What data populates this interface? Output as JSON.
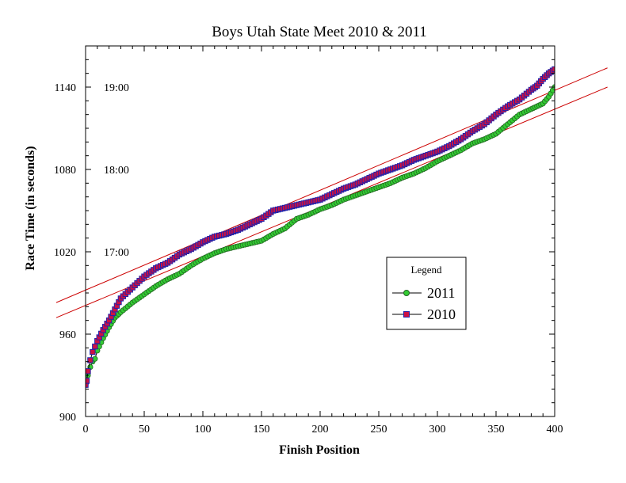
{
  "chart_data": {
    "type": "scatter",
    "title": "Boys Utah State Meet 2010 & 2011",
    "xlabel": "Finish Position",
    "ylabel": "Race Time  (in seconds)",
    "xlim": [
      0,
      400
    ],
    "ylim": [
      900,
      1170
    ],
    "xticks": [
      0,
      50,
      100,
      150,
      200,
      250,
      300,
      350,
      400
    ],
    "yticks": [
      900,
      960,
      1020,
      1080,
      1140
    ],
    "grid": false,
    "legend_position": "right-center",
    "legend": {
      "title": "Legend",
      "entries": [
        "2011",
        "2010"
      ]
    },
    "annotations": [
      {
        "text": "19:00",
        "y": 1140
      },
      {
        "text": "18:00",
        "y": 1080
      },
      {
        "text": "17:00",
        "y": 1020
      }
    ],
    "series": [
      {
        "name": "2011",
        "color": "#33cc33",
        "marker": "circle",
        "x": [
          0,
          1,
          2,
          4,
          6,
          8,
          10,
          15,
          20,
          25,
          30,
          40,
          50,
          60,
          70,
          80,
          90,
          100,
          110,
          120,
          130,
          140,
          150,
          160,
          170,
          180,
          190,
          200,
          210,
          220,
          230,
          240,
          250,
          260,
          270,
          280,
          290,
          300,
          310,
          320,
          330,
          340,
          350,
          360,
          370,
          380,
          385,
          390,
          395,
          400
        ],
        "y": [
          923,
          925,
          930,
          936,
          940,
          942,
          948,
          957,
          965,
          972,
          976,
          983,
          989,
          995,
          1000,
          1004,
          1010,
          1015,
          1019,
          1022,
          1024,
          1026,
          1028,
          1033,
          1037,
          1044,
          1047,
          1051,
          1054,
          1058,
          1061,
          1064,
          1067,
          1070,
          1074,
          1077,
          1081,
          1086,
          1090,
          1094,
          1099,
          1102,
          1106,
          1113,
          1120,
          1124,
          1126,
          1128,
          1133,
          1140
        ]
      },
      {
        "name": "2010",
        "color": "#cc1144",
        "marker": "square",
        "x": [
          0,
          1,
          2,
          4,
          6,
          8,
          10,
          15,
          20,
          25,
          30,
          40,
          50,
          60,
          70,
          80,
          90,
          100,
          110,
          120,
          130,
          140,
          150,
          160,
          170,
          180,
          190,
          200,
          210,
          220,
          230,
          240,
          250,
          260,
          270,
          280,
          290,
          300,
          310,
          320,
          330,
          340,
          350,
          360,
          370,
          380,
          385,
          390,
          395,
          400
        ],
        "y": [
          923,
          926,
          933,
          941,
          947,
          951,
          955,
          963,
          970,
          978,
          986,
          994,
          1002,
          1008,
          1012,
          1018,
          1022,
          1027,
          1031,
          1033,
          1036,
          1040,
          1044,
          1050,
          1052,
          1054,
          1056,
          1058,
          1062,
          1066,
          1069,
          1073,
          1077,
          1080,
          1083,
          1087,
          1090,
          1093,
          1097,
          1102,
          1108,
          1113,
          1120,
          1126,
          1131,
          1138,
          1141,
          1146,
          1150,
          1153
        ]
      }
    ],
    "reference_lines": [
      {
        "color": "#cc0000",
        "x": [
          -25,
          445
        ],
        "y": [
          972,
          1140
        ]
      },
      {
        "color": "#cc0000",
        "x": [
          -25,
          445
        ],
        "y": [
          983,
          1154
        ]
      }
    ]
  }
}
